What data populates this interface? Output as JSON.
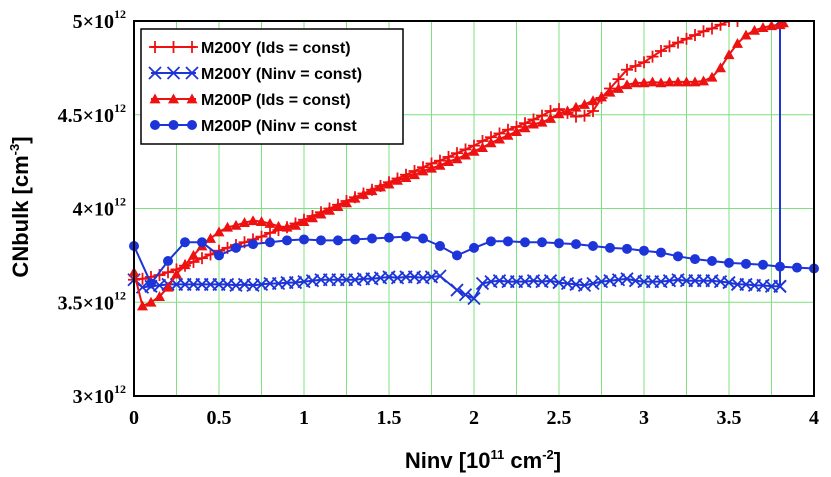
{
  "chart_data": {
    "type": "line",
    "xlabel": {
      "main": "Ninv [10",
      "sup": "11",
      "rest": " cm",
      "sup2": "-2",
      "end": "]"
    },
    "ylabel": {
      "main": "CNbulk [cm",
      "sup": "-3",
      "end": "]"
    },
    "xlim": [
      0,
      4
    ],
    "ylim": [
      3.0,
      5.0
    ],
    "grid": true,
    "legend_position": "top-left",
    "xticks": [
      {
        "value": 0,
        "label": "0"
      },
      {
        "value": 0.5,
        "label": "0.5"
      },
      {
        "value": 1,
        "label": "1"
      },
      {
        "value": 1.5,
        "label": "1.5"
      },
      {
        "value": 2,
        "label": "2"
      },
      {
        "value": 2.5,
        "label": "2.5"
      },
      {
        "value": 3,
        "label": "3"
      },
      {
        "value": 3.5,
        "label": "3.5"
      },
      {
        "value": 4,
        "label": "4"
      }
    ],
    "yticks": [
      {
        "value": 3.0,
        "mantissa": "3×10",
        "exp": "12"
      },
      {
        "value": 3.5,
        "mantissa": "3.5×10",
        "exp": "12"
      },
      {
        "value": 4.0,
        "mantissa": "4×10",
        "exp": "12"
      },
      {
        "value": 4.5,
        "mantissa": "4.5×10",
        "exp": "12"
      },
      {
        "value": 5.0,
        "mantissa": "5×10",
        "exp": "12"
      }
    ],
    "series": [
      {
        "name": "M200Y (Ids = const)",
        "color": "#ee1111",
        "marker": "plus",
        "x": [
          0,
          0.05,
          0.1,
          0.15,
          0.2,
          0.25,
          0.3,
          0.35,
          0.4,
          0.45,
          0.5,
          0.55,
          0.6,
          0.65,
          0.7,
          0.75,
          0.8,
          0.85,
          0.9,
          0.95,
          1.0,
          1.05,
          1.1,
          1.15,
          1.2,
          1.25,
          1.3,
          1.35,
          1.4,
          1.45,
          1.5,
          1.55,
          1.6,
          1.65,
          1.7,
          1.75,
          1.8,
          1.85,
          1.9,
          1.95,
          2.0,
          2.05,
          2.1,
          2.15,
          2.2,
          2.25,
          2.3,
          2.35,
          2.4,
          2.45,
          2.5,
          2.55,
          2.6,
          2.65,
          2.7,
          2.75,
          2.8,
          2.85,
          2.9,
          2.95,
          3.0,
          3.05,
          3.1,
          3.15,
          3.2,
          3.25,
          3.3,
          3.35,
          3.4,
          3.45,
          3.5,
          3.55
        ],
        "y": [
          3.62,
          3.625,
          3.635,
          3.645,
          3.66,
          3.675,
          3.695,
          3.715,
          3.735,
          3.755,
          3.775,
          3.79,
          3.805,
          3.82,
          3.835,
          3.85,
          3.87,
          3.885,
          3.9,
          3.92,
          3.94,
          3.96,
          3.98,
          4.0,
          4.02,
          4.04,
          4.06,
          4.08,
          4.1,
          4.12,
          4.14,
          4.16,
          4.18,
          4.2,
          4.22,
          4.24,
          4.255,
          4.275,
          4.295,
          4.315,
          4.335,
          4.36,
          4.38,
          4.4,
          4.42,
          4.435,
          4.455,
          4.475,
          4.495,
          4.52,
          4.53,
          4.51,
          4.49,
          4.495,
          4.52,
          4.59,
          4.64,
          4.69,
          4.74,
          4.76,
          4.78,
          4.81,
          4.84,
          4.865,
          4.885,
          4.905,
          4.925,
          4.945,
          4.96,
          4.98,
          5.0,
          5.0
        ]
      },
      {
        "name": "M200Y (Ninv = const)",
        "color": "#1c34d8",
        "marker": "x",
        "x": [
          0,
          0.05,
          0.1,
          0.15,
          0.2,
          0.25,
          0.3,
          0.35,
          0.4,
          0.45,
          0.5,
          0.55,
          0.6,
          0.65,
          0.7,
          0.75,
          0.8,
          0.85,
          0.9,
          0.95,
          1.0,
          1.05,
          1.1,
          1.15,
          1.2,
          1.25,
          1.3,
          1.35,
          1.4,
          1.45,
          1.5,
          1.55,
          1.6,
          1.65,
          1.7,
          1.75,
          1.8,
          1.9,
          1.95,
          2.0,
          2.05,
          2.1,
          2.15,
          2.2,
          2.25,
          2.3,
          2.35,
          2.4,
          2.45,
          2.5,
          2.55,
          2.6,
          2.65,
          2.7,
          2.75,
          2.8,
          2.85,
          2.9,
          2.95,
          3.0,
          3.05,
          3.1,
          3.15,
          3.2,
          3.25,
          3.3,
          3.35,
          3.4,
          3.45,
          3.5,
          3.55,
          3.6,
          3.65,
          3.7,
          3.75,
          3.8,
          3.8,
          3.8
        ],
        "y": [
          3.62,
          3.58,
          3.585,
          3.59,
          3.595,
          3.595,
          3.595,
          3.595,
          3.595,
          3.595,
          3.595,
          3.595,
          3.59,
          3.595,
          3.59,
          3.595,
          3.6,
          3.6,
          3.605,
          3.605,
          3.61,
          3.615,
          3.62,
          3.62,
          3.62,
          3.62,
          3.62,
          3.625,
          3.625,
          3.63,
          3.635,
          3.63,
          3.635,
          3.635,
          3.63,
          3.635,
          3.64,
          3.565,
          3.54,
          3.52,
          3.6,
          3.61,
          3.615,
          3.61,
          3.61,
          3.61,
          3.615,
          3.61,
          3.615,
          3.605,
          3.6,
          3.595,
          3.59,
          3.6,
          3.61,
          3.615,
          3.62,
          3.625,
          3.615,
          3.61,
          3.61,
          3.61,
          3.615,
          3.62,
          3.615,
          3.615,
          3.615,
          3.615,
          3.61,
          3.605,
          3.595,
          3.595,
          3.59,
          3.59,
          3.585,
          3.585,
          3.585,
          5.0
        ]
      },
      {
        "name": "M200P (Ids = const)",
        "color": "#ee1111",
        "marker": "triangle",
        "x": [
          0,
          0.05,
          0.1,
          0.15,
          0.2,
          0.25,
          0.3,
          0.35,
          0.4,
          0.45,
          0.5,
          0.55,
          0.6,
          0.65,
          0.7,
          0.75,
          0.8,
          0.85,
          0.9,
          0.95,
          1.0,
          1.05,
          1.1,
          1.15,
          1.2,
          1.25,
          1.3,
          1.35,
          1.4,
          1.45,
          1.5,
          1.55,
          1.6,
          1.65,
          1.7,
          1.75,
          1.8,
          1.85,
          1.9,
          1.95,
          2.0,
          2.05,
          2.1,
          2.15,
          2.2,
          2.25,
          2.3,
          2.35,
          2.4,
          2.45,
          2.5,
          2.55,
          2.6,
          2.65,
          2.7,
          2.75,
          2.8,
          2.85,
          2.9,
          2.95,
          3.0,
          3.05,
          3.1,
          3.15,
          3.2,
          3.25,
          3.3,
          3.35,
          3.4,
          3.45,
          3.5,
          3.55,
          3.6,
          3.65,
          3.7,
          3.75,
          3.8,
          3.82
        ],
        "y": [
          3.66,
          3.48,
          3.5,
          3.53,
          3.58,
          3.65,
          3.7,
          3.75,
          3.8,
          3.84,
          3.875,
          3.9,
          3.91,
          3.925,
          3.935,
          3.93,
          3.92,
          3.905,
          3.9,
          3.91,
          3.93,
          3.95,
          3.97,
          3.99,
          4.01,
          4.03,
          4.055,
          4.075,
          4.095,
          4.115,
          4.13,
          4.15,
          4.165,
          4.18,
          4.2,
          4.215,
          4.23,
          4.25,
          4.265,
          4.285,
          4.305,
          4.325,
          4.35,
          4.37,
          4.39,
          4.41,
          4.43,
          4.45,
          4.46,
          4.48,
          4.505,
          4.52,
          4.54,
          4.555,
          4.575,
          4.595,
          4.62,
          4.64,
          4.66,
          4.67,
          4.67,
          4.675,
          4.67,
          4.675,
          4.675,
          4.675,
          4.675,
          4.68,
          4.7,
          4.75,
          4.82,
          4.88,
          4.925,
          4.95,
          4.965,
          4.975,
          4.98,
          4.99
        ]
      },
      {
        "name": "M200P (Ninv = const",
        "color": "#1c34d8",
        "marker": "circle",
        "x": [
          0,
          0.1,
          0.2,
          0.3,
          0.4,
          0.5,
          0.6,
          0.7,
          0.8,
          0.9,
          1.0,
          1.1,
          1.2,
          1.3,
          1.4,
          1.5,
          1.6,
          1.7,
          1.8,
          1.9,
          2.0,
          2.1,
          2.2,
          2.3,
          2.4,
          2.5,
          2.6,
          2.7,
          2.8,
          2.9,
          3.0,
          3.1,
          3.2,
          3.3,
          3.4,
          3.5,
          3.6,
          3.7,
          3.8,
          3.9,
          4.0
        ],
        "y": [
          3.8,
          3.6,
          3.72,
          3.82,
          3.82,
          3.75,
          3.79,
          3.81,
          3.82,
          3.83,
          3.835,
          3.83,
          3.83,
          3.835,
          3.84,
          3.845,
          3.85,
          3.84,
          3.8,
          3.75,
          3.79,
          3.825,
          3.825,
          3.82,
          3.82,
          3.815,
          3.81,
          3.8,
          3.79,
          3.785,
          3.775,
          3.765,
          3.745,
          3.73,
          3.72,
          3.71,
          3.705,
          3.7,
          3.69,
          3.685,
          3.68
        ]
      }
    ]
  }
}
